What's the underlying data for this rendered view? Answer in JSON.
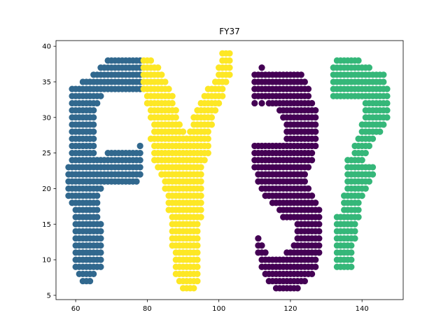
{
  "chart_data": {
    "type": "scatter",
    "title": "FY37",
    "xlabel": "",
    "ylabel": "",
    "xlim": [
      54.5,
      151.5
    ],
    "ylim": [
      4.4,
      40.8
    ],
    "x_ticks": [
      60,
      80,
      100,
      120,
      140
    ],
    "y_ticks": [
      5,
      10,
      15,
      20,
      25,
      30,
      35,
      40
    ],
    "grid": false,
    "legend": "none",
    "series": [
      {
        "color": "#31688e",
        "runs": [
          [
            38,
            69,
            78
          ],
          [
            37,
            67,
            78
          ],
          [
            36,
            65,
            78
          ],
          [
            35,
            62,
            78
          ],
          [
            34,
            59,
            78
          ],
          [
            33,
            59,
            67
          ],
          [
            32,
            59,
            66
          ],
          [
            31,
            59,
            65
          ],
          [
            30,
            59,
            65
          ],
          [
            29,
            59,
            65
          ],
          [
            28,
            59,
            65
          ],
          [
            27,
            59,
            65
          ],
          [
            26,
            59,
            65
          ],
          [
            26,
            78,
            78
          ],
          [
            25,
            59,
            65
          ],
          [
            25,
            69,
            78
          ],
          [
            24,
            59,
            78
          ],
          [
            23,
            58,
            78
          ],
          [
            22,
            58,
            78
          ],
          [
            21,
            58,
            77
          ],
          [
            20,
            58,
            67
          ],
          [
            19,
            58,
            66
          ],
          [
            18,
            59,
            66
          ],
          [
            17,
            60,
            66
          ],
          [
            16,
            60,
            66
          ],
          [
            15,
            60,
            67
          ],
          [
            14,
            60,
            67
          ],
          [
            13,
            60,
            67
          ],
          [
            12,
            60,
            67
          ],
          [
            11,
            60,
            67
          ],
          [
            10,
            60,
            67
          ],
          [
            9,
            60,
            67
          ],
          [
            8,
            61,
            65
          ],
          [
            7,
            62,
            64
          ]
        ]
      },
      {
        "color": "#fde725",
        "runs": [
          [
            39,
            101,
            103
          ],
          [
            38,
            79,
            81
          ],
          [
            38,
            101,
            103
          ],
          [
            37,
            79,
            83
          ],
          [
            37,
            100,
            103
          ],
          [
            36,
            79,
            84
          ],
          [
            36,
            100,
            103
          ],
          [
            35,
            79,
            85
          ],
          [
            35,
            99,
            102
          ],
          [
            34,
            79,
            86
          ],
          [
            34,
            97,
            101
          ],
          [
            33,
            80,
            87
          ],
          [
            33,
            96,
            101
          ],
          [
            32,
            80,
            87
          ],
          [
            32,
            95,
            100
          ],
          [
            31,
            81,
            88
          ],
          [
            31,
            94,
            99
          ],
          [
            30,
            81,
            88
          ],
          [
            30,
            93,
            98
          ],
          [
            29,
            82,
            89
          ],
          [
            29,
            93,
            98
          ],
          [
            28,
            82,
            90
          ],
          [
            28,
            92,
            97
          ],
          [
            27,
            81,
            97
          ],
          [
            26,
            82,
            97
          ],
          [
            25,
            82,
            97
          ],
          [
            24,
            82,
            96
          ],
          [
            23,
            83,
            95
          ],
          [
            22,
            84,
            95
          ],
          [
            21,
            85,
            95
          ],
          [
            20,
            85,
            95
          ],
          [
            19,
            86,
            95
          ],
          [
            18,
            86,
            95
          ],
          [
            17,
            86,
            95
          ],
          [
            16,
            87,
            95
          ],
          [
            15,
            87,
            94
          ],
          [
            14,
            87,
            94
          ],
          [
            13,
            87,
            94
          ],
          [
            12,
            87,
            94
          ],
          [
            11,
            88,
            94
          ],
          [
            10,
            88,
            94
          ],
          [
            9,
            88,
            94
          ],
          [
            8,
            88,
            94
          ],
          [
            7,
            89,
            94
          ],
          [
            6,
            90,
            93
          ]
        ]
      },
      {
        "color": "#440154",
        "runs": [
          [
            37,
            112,
            112
          ],
          [
            36,
            110,
            123
          ],
          [
            35,
            110,
            124
          ],
          [
            34,
            110,
            125
          ],
          [
            33,
            110,
            125
          ],
          [
            32,
            110,
            110
          ],
          [
            32,
            112,
            112
          ],
          [
            32,
            114,
            126
          ],
          [
            31,
            117,
            127
          ],
          [
            30,
            118,
            127
          ],
          [
            29,
            119,
            127
          ],
          [
            28,
            119,
            127
          ],
          [
            27,
            119,
            127
          ],
          [
            26,
            110,
            127
          ],
          [
            25,
            110,
            126
          ],
          [
            24,
            110,
            126
          ],
          [
            23,
            110,
            125
          ],
          [
            22,
            111,
            124
          ],
          [
            21,
            111,
            124
          ],
          [
            20,
            112,
            125
          ],
          [
            19,
            113,
            126
          ],
          [
            18,
            115,
            127
          ],
          [
            17,
            117,
            128
          ],
          [
            16,
            118,
            128
          ],
          [
            15,
            122,
            128
          ],
          [
            14,
            122,
            128
          ],
          [
            13,
            111,
            111
          ],
          [
            13,
            122,
            128
          ],
          [
            12,
            111,
            112
          ],
          [
            12,
            121,
            128
          ],
          [
            11,
            111,
            113
          ],
          [
            11,
            119,
            128
          ],
          [
            10,
            112,
            127
          ],
          [
            9,
            112,
            127
          ],
          [
            8,
            113,
            126
          ],
          [
            7,
            114,
            124
          ],
          [
            6,
            116,
            122
          ]
        ]
      },
      {
        "color": "#35b779",
        "runs": [
          [
            38,
            133,
            139
          ],
          [
            37,
            132,
            142
          ],
          [
            36,
            132,
            146
          ],
          [
            35,
            132,
            146
          ],
          [
            34,
            132,
            147
          ],
          [
            33,
            132,
            147
          ],
          [
            32,
            141,
            147
          ],
          [
            31,
            141,
            147
          ],
          [
            30,
            141,
            147
          ],
          [
            29,
            140,
            146
          ],
          [
            28,
            140,
            145
          ],
          [
            27,
            139,
            143
          ],
          [
            26,
            138,
            142
          ],
          [
            25,
            138,
            141
          ],
          [
            24,
            136,
            140
          ],
          [
            23,
            136,
            143
          ],
          [
            22,
            136,
            143
          ],
          [
            21,
            136,
            142
          ],
          [
            20,
            136,
            141
          ],
          [
            19,
            135,
            140
          ],
          [
            18,
            135,
            139
          ],
          [
            17,
            135,
            139
          ],
          [
            16,
            133,
            139
          ],
          [
            15,
            133,
            138
          ],
          [
            14,
            133,
            138
          ],
          [
            13,
            133,
            138
          ],
          [
            12,
            133,
            137
          ],
          [
            11,
            133,
            137
          ],
          [
            10,
            133,
            137
          ],
          [
            9,
            133,
            137
          ]
        ]
      }
    ]
  }
}
